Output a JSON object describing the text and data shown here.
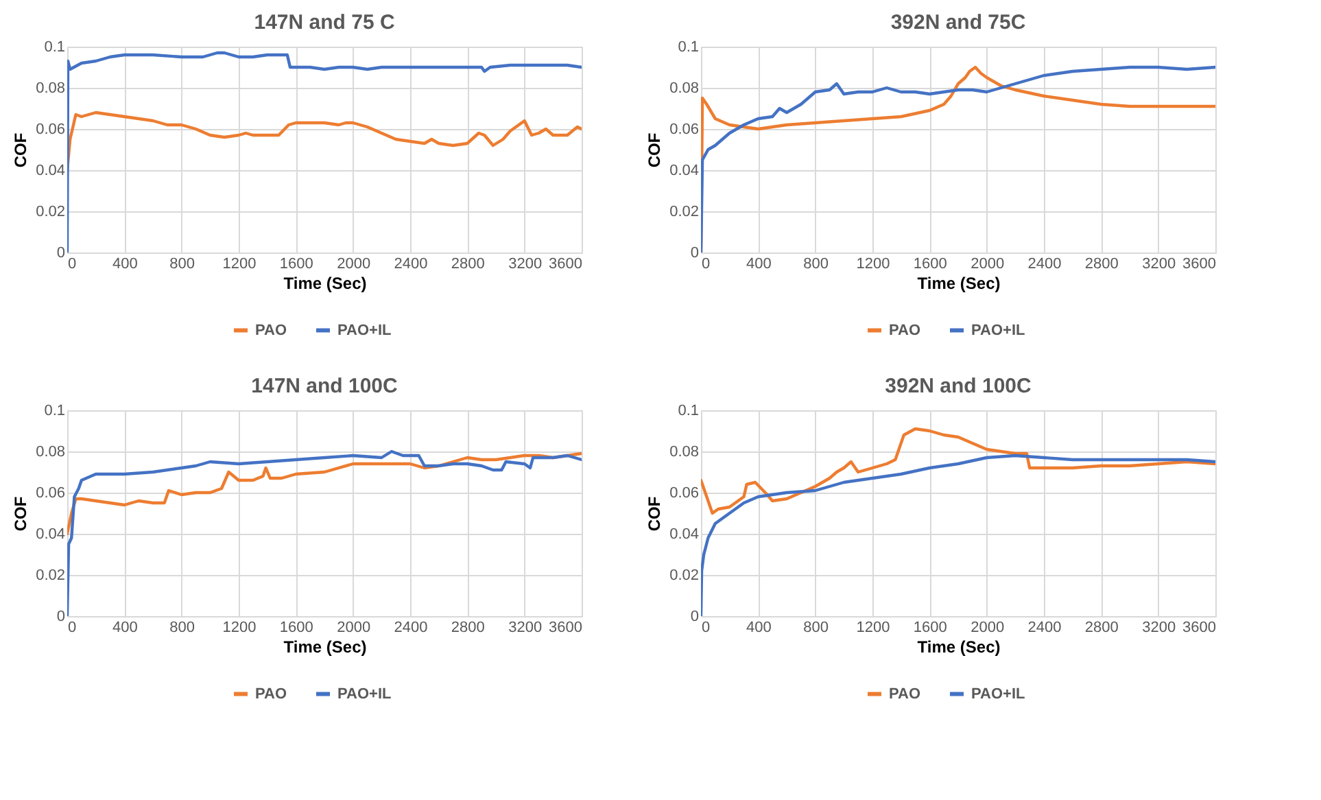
{
  "chart_data": [
    {
      "type": "line",
      "title": "147N and 75 C",
      "xlabel": "Time (Sec)",
      "ylabel": "COF",
      "xlim": [
        0,
        3600
      ],
      "xticks": [
        0,
        400,
        800,
        1200,
        1600,
        2000,
        2400,
        2800,
        3200,
        3600
      ],
      "ylim": [
        0,
        0.1
      ],
      "yticks": [
        0,
        0.02,
        0.04,
        0.06,
        0.08,
        0.1
      ],
      "grid": true,
      "legend": "bottom",
      "marker": "none",
      "line_style": "solid",
      "series": [
        {
          "name": "PAO",
          "color": "#ed7d31",
          "x": [
            0,
            20,
            60,
            100,
            200,
            300,
            400,
            500,
            600,
            700,
            800,
            900,
            1000,
            1100,
            1200,
            1250,
            1300,
            1400,
            1480,
            1550,
            1600,
            1700,
            1800,
            1900,
            1950,
            2000,
            2100,
            2200,
            2300,
            2400,
            2500,
            2550,
            2600,
            2700,
            2800,
            2880,
            2920,
            2980,
            3050,
            3100,
            3200,
            3250,
            3300,
            3350,
            3400,
            3500,
            3570,
            3600
          ],
          "values": [
            0.04,
            0.055,
            0.067,
            0.066,
            0.068,
            0.067,
            0.066,
            0.065,
            0.064,
            0.062,
            0.062,
            0.06,
            0.057,
            0.056,
            0.057,
            0.058,
            0.057,
            0.057,
            0.057,
            0.062,
            0.063,
            0.063,
            0.063,
            0.062,
            0.063,
            0.063,
            0.061,
            0.058,
            0.055,
            0.054,
            0.053,
            0.055,
            0.053,
            0.052,
            0.053,
            0.058,
            0.057,
            0.052,
            0.055,
            0.059,
            0.064,
            0.057,
            0.058,
            0.06,
            0.057,
            0.057,
            0.061,
            0.06
          ]
        },
        {
          "name": "PAO+IL",
          "color": "#4472c4",
          "x": [
            0,
            5,
            20,
            100,
            200,
            300,
            400,
            600,
            800,
            950,
            1050,
            1100,
            1200,
            1300,
            1400,
            1540,
            1560,
            1700,
            1800,
            1900,
            2000,
            2100,
            2200,
            2400,
            2600,
            2800,
            2900,
            2920,
            2960,
            3100,
            3300,
            3500,
            3600
          ],
          "values": [
            0,
            0.093,
            0.089,
            0.092,
            0.093,
            0.095,
            0.096,
            0.096,
            0.095,
            0.095,
            0.097,
            0.097,
            0.095,
            0.095,
            0.096,
            0.096,
            0.09,
            0.09,
            0.089,
            0.09,
            0.09,
            0.089,
            0.09,
            0.09,
            0.09,
            0.09,
            0.09,
            0.088,
            0.09,
            0.091,
            0.091,
            0.091,
            0.09
          ]
        }
      ]
    },
    {
      "type": "line",
      "title": "392N and 75C",
      "xlabel": "Time (Sec)",
      "ylabel": "COF",
      "xlim": [
        0,
        3600
      ],
      "xticks": [
        0,
        400,
        800,
        1200,
        1600,
        2000,
        2400,
        2800,
        3200,
        3600
      ],
      "ylim": [
        0,
        0.1
      ],
      "yticks": [
        0,
        0.02,
        0.04,
        0.06,
        0.08,
        0.1
      ],
      "grid": true,
      "legend": "bottom",
      "marker": "none",
      "line_style": "solid",
      "series": [
        {
          "name": "PAO",
          "color": "#ed7d31",
          "x": [
            0,
            10,
            40,
            100,
            200,
            400,
            600,
            800,
            1000,
            1200,
            1400,
            1600,
            1700,
            1750,
            1800,
            1850,
            1880,
            1920,
            1960,
            2000,
            2100,
            2200,
            2400,
            2600,
            2800,
            3000,
            3200,
            3400,
            3600
          ],
          "values": [
            0,
            0.075,
            0.072,
            0.065,
            0.062,
            0.06,
            0.062,
            0.063,
            0.064,
            0.065,
            0.066,
            0.069,
            0.072,
            0.076,
            0.082,
            0.085,
            0.088,
            0.09,
            0.087,
            0.085,
            0.081,
            0.079,
            0.076,
            0.074,
            0.072,
            0.071,
            0.071,
            0.071,
            0.071
          ]
        },
        {
          "name": "PAO+IL",
          "color": "#4472c4",
          "x": [
            0,
            10,
            50,
            100,
            200,
            300,
            400,
            500,
            550,
            600,
            700,
            800,
            900,
            950,
            1000,
            1100,
            1200,
            1300,
            1400,
            1500,
            1600,
            1700,
            1800,
            1900,
            2000,
            2100,
            2200,
            2400,
            2600,
            2800,
            3000,
            3200,
            3400,
            3600
          ],
          "values": [
            0,
            0.045,
            0.05,
            0.052,
            0.058,
            0.062,
            0.065,
            0.066,
            0.07,
            0.068,
            0.072,
            0.078,
            0.079,
            0.082,
            0.077,
            0.078,
            0.078,
            0.08,
            0.078,
            0.078,
            0.077,
            0.078,
            0.079,
            0.079,
            0.078,
            0.08,
            0.082,
            0.086,
            0.088,
            0.089,
            0.09,
            0.09,
            0.089,
            0.09
          ]
        }
      ]
    },
    {
      "type": "line",
      "title": "147N and 100C",
      "xlabel": "Time (Sec)",
      "ylabel": "COF",
      "xlim": [
        0,
        3600
      ],
      "xticks": [
        0,
        400,
        800,
        1200,
        1600,
        2000,
        2400,
        2800,
        3200,
        3600
      ],
      "ylim": [
        0,
        0.1
      ],
      "yticks": [
        0,
        0.02,
        0.04,
        0.06,
        0.08,
        0.1
      ],
      "grid": true,
      "legend": "bottom",
      "marker": "none",
      "line_style": "solid",
      "series": [
        {
          "name": "PAO",
          "color": "#ed7d31",
          "x": [
            0,
            30,
            60,
            100,
            200,
            300,
            400,
            500,
            600,
            680,
            710,
            800,
            900,
            1000,
            1080,
            1130,
            1200,
            1300,
            1370,
            1390,
            1420,
            1500,
            1600,
            1800,
            2000,
            2200,
            2400,
            2500,
            2600,
            2700,
            2800,
            2900,
            3000,
            3100,
            3200,
            3300,
            3400,
            3500,
            3600
          ],
          "values": [
            0.04,
            0.05,
            0.057,
            0.057,
            0.056,
            0.055,
            0.054,
            0.056,
            0.055,
            0.055,
            0.061,
            0.059,
            0.06,
            0.06,
            0.062,
            0.07,
            0.066,
            0.066,
            0.068,
            0.072,
            0.067,
            0.067,
            0.069,
            0.07,
            0.074,
            0.074,
            0.074,
            0.072,
            0.073,
            0.075,
            0.077,
            0.076,
            0.076,
            0.077,
            0.078,
            0.078,
            0.077,
            0.078,
            0.079
          ]
        },
        {
          "name": "PAO+IL",
          "color": "#4472c4",
          "x": [
            0,
            10,
            30,
            50,
            80,
            100,
            200,
            400,
            600,
            800,
            900,
            1000,
            1200,
            1400,
            1600,
            1800,
            2000,
            2200,
            2270,
            2350,
            2460,
            2500,
            2600,
            2700,
            2800,
            2900,
            2980,
            3040,
            3070,
            3200,
            3240,
            3260,
            3400,
            3500,
            3600
          ],
          "values": [
            0,
            0.035,
            0.038,
            0.058,
            0.062,
            0.066,
            0.069,
            0.069,
            0.07,
            0.072,
            0.073,
            0.075,
            0.074,
            0.075,
            0.076,
            0.077,
            0.078,
            0.077,
            0.08,
            0.078,
            0.078,
            0.073,
            0.073,
            0.074,
            0.074,
            0.073,
            0.071,
            0.071,
            0.075,
            0.074,
            0.072,
            0.077,
            0.077,
            0.078,
            0.076
          ]
        }
      ]
    },
    {
      "type": "line",
      "title": "392N and 100C",
      "xlabel": "Time (Sec)",
      "ylabel": "COF",
      "xlim": [
        0,
        3600
      ],
      "xticks": [
        0,
        400,
        800,
        1200,
        1600,
        2000,
        2400,
        2800,
        3200,
        3600
      ],
      "ylim": [
        0,
        0.1
      ],
      "yticks": [
        0,
        0.02,
        0.04,
        0.06,
        0.08,
        0.1
      ],
      "grid": true,
      "legend": "bottom",
      "marker": "none",
      "line_style": "solid",
      "series": [
        {
          "name": "PAO",
          "color": "#ed7d31",
          "x": [
            0,
            30,
            80,
            120,
            200,
            300,
            320,
            380,
            450,
            500,
            600,
            700,
            800,
            900,
            950,
            1000,
            1050,
            1100,
            1200,
            1300,
            1360,
            1420,
            1500,
            1600,
            1700,
            1800,
            1900,
            2000,
            2100,
            2200,
            2280,
            2300,
            2400,
            2600,
            2800,
            3000,
            3200,
            3400,
            3600
          ],
          "values": [
            0.066,
            0.06,
            0.05,
            0.052,
            0.053,
            0.058,
            0.064,
            0.065,
            0.06,
            0.056,
            0.057,
            0.06,
            0.063,
            0.067,
            0.07,
            0.072,
            0.075,
            0.07,
            0.072,
            0.074,
            0.076,
            0.088,
            0.091,
            0.09,
            0.088,
            0.087,
            0.084,
            0.081,
            0.08,
            0.079,
            0.079,
            0.072,
            0.072,
            0.072,
            0.073,
            0.073,
            0.074,
            0.075,
            0.074
          ]
        },
        {
          "name": "PAO+IL",
          "color": "#4472c4",
          "x": [
            0,
            5,
            20,
            50,
            100,
            200,
            300,
            400,
            500,
            600,
            800,
            1000,
            1200,
            1400,
            1600,
            1800,
            2000,
            2200,
            2400,
            2600,
            2800,
            3000,
            3200,
            3400,
            3600
          ],
          "values": [
            0,
            0.022,
            0.03,
            0.038,
            0.045,
            0.05,
            0.055,
            0.058,
            0.059,
            0.06,
            0.061,
            0.065,
            0.067,
            0.069,
            0.072,
            0.074,
            0.077,
            0.078,
            0.077,
            0.076,
            0.076,
            0.076,
            0.076,
            0.076,
            0.075
          ]
        }
      ]
    }
  ]
}
